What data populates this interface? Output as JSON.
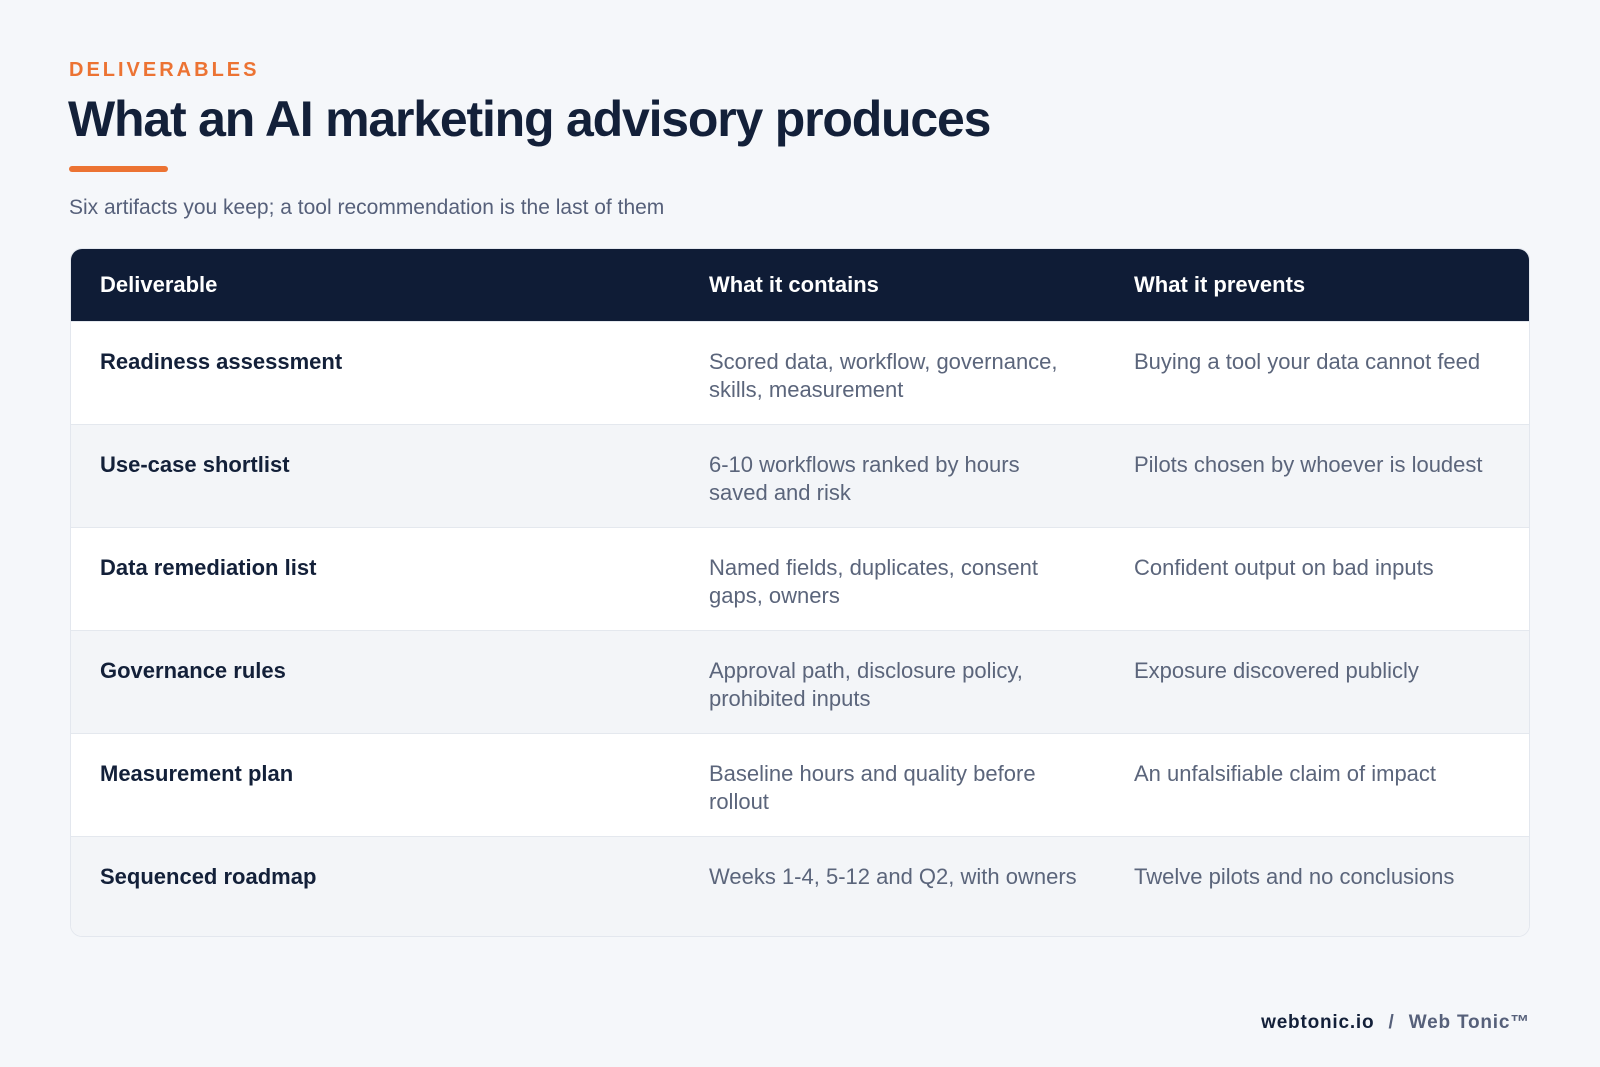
{
  "header": {
    "eyebrow": "DELIVERABLES",
    "title": "What an AI marketing advisory produces",
    "subtitle": "Six artifacts you keep; a tool recommendation is the last of them"
  },
  "table": {
    "columns": [
      "Deliverable",
      "What it contains",
      "What it prevents"
    ],
    "rows": [
      {
        "deliverable": "Readiness assessment",
        "contains": "Scored data, workflow, governance, skills, measurement",
        "prevents": "Buying a tool your data cannot feed"
      },
      {
        "deliverable": "Use-case shortlist",
        "contains": "6-10 workflows ranked by hours saved and risk",
        "prevents": "Pilots chosen by whoever is loudest"
      },
      {
        "deliverable": "Data remediation list",
        "contains": "Named fields, duplicates, consent gaps, owners",
        "prevents": "Confident output on bad inputs"
      },
      {
        "deliverable": "Governance rules",
        "contains": "Approval path, disclosure policy, prohibited inputs",
        "prevents": "Exposure discovered publicly"
      },
      {
        "deliverable": "Measurement plan",
        "contains": "Baseline hours and quality before rollout",
        "prevents": "An unfalsifiable claim of impact"
      },
      {
        "deliverable": "Sequenced roadmap",
        "contains": "Weeks 1-4, 5-12 and Q2, with owners",
        "prevents": "Twelve pilots and no conclusions"
      }
    ]
  },
  "footer": {
    "site": "webtonic.io",
    "separator": "/",
    "brand": "Web Tonic™"
  },
  "colors": {
    "accent": "#ec7333",
    "navy": "#0f1c36",
    "background": "#f5f7fa"
  }
}
